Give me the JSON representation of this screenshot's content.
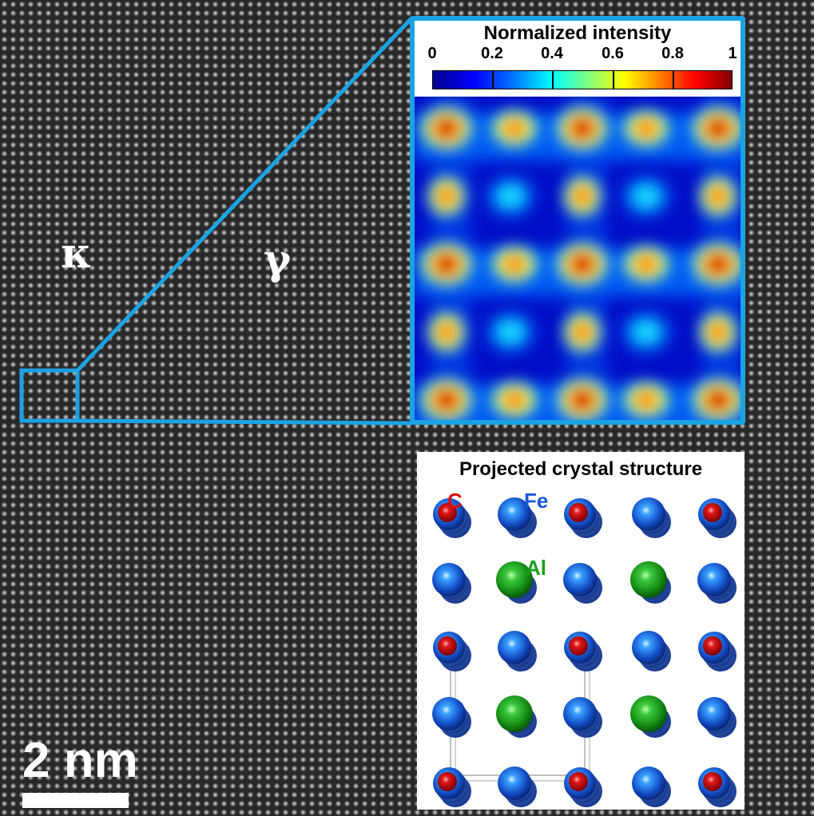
{
  "phases": {
    "kappa": "κ",
    "gamma": "γ"
  },
  "scalebar": {
    "label": "2 nm"
  },
  "heatmap_inset": {
    "colorbar_title": "Normalized intensity",
    "ticks": [
      "0",
      "0.2",
      "0.4",
      "0.6",
      "0.8",
      "1"
    ],
    "frame_color": "#1aa3e4"
  },
  "crystal_inset": {
    "title": "Projected crystal structure",
    "elements": {
      "c": "C",
      "fe": "Fe",
      "al": "Al"
    },
    "colors": {
      "c": "#d01010",
      "fe": "#1a5ad8",
      "al": "#19a019"
    }
  }
}
